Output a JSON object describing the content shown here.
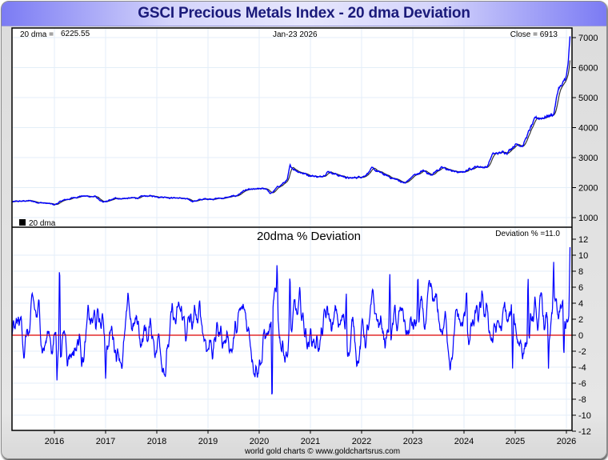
{
  "window": {
    "title": "GSCI Precious Metals Index - 20 dma Deviation"
  },
  "chart_data": [
    {
      "type": "line",
      "panel": "price",
      "title": "GSCI Precious Metals Index",
      "header_left_label": "20 dma =",
      "header_left_value": "6225.55",
      "header_center": "Jan-23  2026",
      "header_right": "Close = 6913",
      "legend": [
        {
          "name": "20 dma",
          "color": "#000000"
        }
      ],
      "legend_placement": "bottom-left",
      "series": [
        {
          "name": "Close",
          "color": "#0000ff"
        },
        {
          "name": "20 dma",
          "color": "#333333"
        }
      ],
      "x_start": 2015.17,
      "x_end": 2026.07,
      "ylim": [
        700,
        7300
      ],
      "yticks": [
        1000,
        2000,
        3000,
        4000,
        5000,
        6000,
        7000
      ],
      "grid": true,
      "anchors": [
        [
          2015.17,
          1520
        ],
        [
          2015.5,
          1560
        ],
        [
          2015.9,
          1460
        ],
        [
          2016.0,
          1420
        ],
        [
          2016.15,
          1560
        ],
        [
          2016.5,
          1720
        ],
        [
          2016.8,
          1700
        ],
        [
          2016.95,
          1490
        ],
        [
          2017.2,
          1640
        ],
        [
          2017.6,
          1650
        ],
        [
          2017.8,
          1720
        ],
        [
          2018.1,
          1700
        ],
        [
          2018.5,
          1640
        ],
        [
          2018.7,
          1550
        ],
        [
          2018.95,
          1620
        ],
        [
          2019.3,
          1650
        ],
        [
          2019.55,
          1720
        ],
        [
          2019.7,
          1900
        ],
        [
          2019.9,
          1930
        ],
        [
          2020.15,
          1960
        ],
        [
          2020.22,
          1780
        ],
        [
          2020.35,
          1990
        ],
        [
          2020.55,
          2250
        ],
        [
          2020.6,
          2690
        ],
        [
          2020.75,
          2560
        ],
        [
          2020.95,
          2430
        ],
        [
          2021.2,
          2350
        ],
        [
          2021.35,
          2560
        ],
        [
          2021.55,
          2410
        ],
        [
          2021.8,
          2300
        ],
        [
          2022.05,
          2400
        ],
        [
          2022.2,
          2620
        ],
        [
          2022.5,
          2380
        ],
        [
          2022.75,
          2220
        ],
        [
          2022.85,
          2140
        ],
        [
          2023.0,
          2380
        ],
        [
          2023.2,
          2560
        ],
        [
          2023.35,
          2440
        ],
        [
          2023.55,
          2660
        ],
        [
          2023.8,
          2540
        ],
        [
          2023.95,
          2490
        ],
        [
          2024.2,
          2700
        ],
        [
          2024.45,
          2690
        ],
        [
          2024.55,
          3100
        ],
        [
          2024.85,
          3200
        ],
        [
          2025.0,
          3460
        ],
        [
          2025.15,
          3430
        ],
        [
          2025.3,
          3980
        ],
        [
          2025.4,
          4280
        ],
        [
          2025.6,
          4380
        ],
        [
          2025.75,
          4450
        ],
        [
          2025.85,
          5350
        ],
        [
          2025.92,
          5380
        ],
        [
          2026.0,
          5700
        ],
        [
          2026.03,
          6050
        ],
        [
          2026.07,
          6913
        ]
      ]
    },
    {
      "type": "line",
      "panel": "deviation",
      "title": "20dma  %  Deviation",
      "header_right": "Deviation % =11.0",
      "series": [
        {
          "name": "20dma % Deviation",
          "color": "#0000ff"
        }
      ],
      "reference_line": {
        "value": 0,
        "color": "#dd0000"
      },
      "x_start": 2015.17,
      "x_end": 2026.07,
      "ylim": [
        -12,
        12
      ],
      "yticks": [
        -12,
        -10,
        -8,
        -6,
        -4,
        -2,
        0,
        2,
        4,
        6,
        8,
        10,
        12
      ],
      "xticks": [
        "2016",
        "2017",
        "2018",
        "2019",
        "2020",
        "2021",
        "2022",
        "2023",
        "2024",
        "2025",
        "2026"
      ],
      "grid": true,
      "extremes": [
        [
          2016.1,
          9.9
        ],
        [
          2016.05,
          -5.7
        ],
        [
          2020.25,
          -9.9
        ],
        [
          2020.35,
          9.6
        ],
        [
          2020.6,
          8.4
        ],
        [
          2021.7,
          6.0
        ],
        [
          2022.55,
          7.9
        ],
        [
          2023.1,
          8.4
        ],
        [
          2024.05,
          6.0
        ],
        [
          2025.25,
          8.1
        ],
        [
          2025.75,
          9.4
        ],
        [
          2025.95,
          -3.3
        ],
        [
          2026.07,
          11.0
        ],
        [
          2017.0,
          -5.5
        ],
        [
          2019.9,
          -4.8
        ],
        [
          2024.95,
          -4.6
        ],
        [
          2025.65,
          -4.3
        ]
      ],
      "current_value": 11.0
    }
  ],
  "footer": {
    "credit": "world gold charts © www.goldchartsrus.com"
  }
}
